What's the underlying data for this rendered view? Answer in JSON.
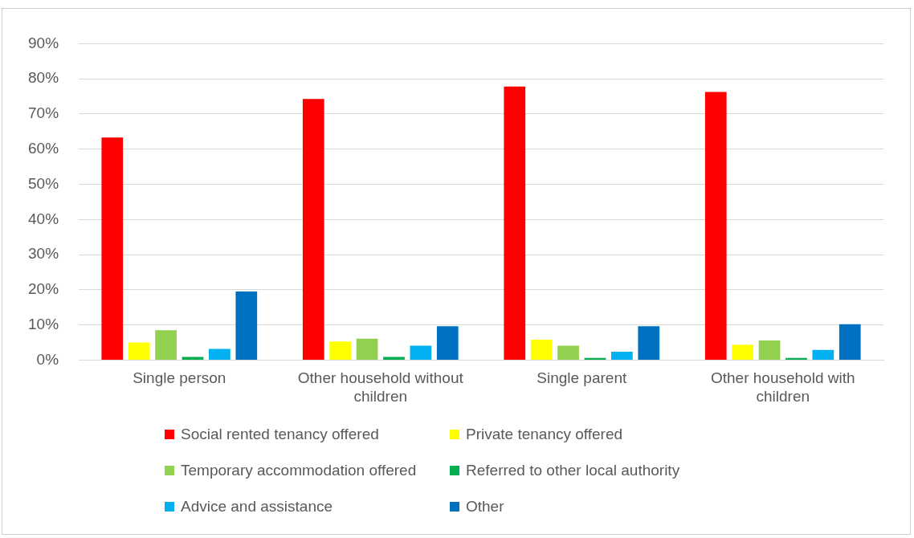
{
  "chart_data": {
    "type": "bar",
    "categories": [
      "Single person",
      "Other household without children",
      "Single parent",
      "Other household with children"
    ],
    "series": [
      {
        "name": "Social rented tenancy offered",
        "color": "#ff0000",
        "values": [
          63.3,
          74.3,
          77.8,
          76.3
        ]
      },
      {
        "name": "Private tenancy offered",
        "color": "#ffff00",
        "values": [
          5.0,
          5.3,
          5.8,
          4.4
        ]
      },
      {
        "name": "Temporary accommodation offered",
        "color": "#92d050",
        "values": [
          8.5,
          6.1,
          4.1,
          5.6
        ]
      },
      {
        "name": "Referred to other local authority",
        "color": "#00b050",
        "values": [
          0.9,
          0.9,
          0.6,
          0.6
        ]
      },
      {
        "name": "Advice and assistance",
        "color": "#00b0f0",
        "values": [
          3.2,
          4.1,
          2.4,
          2.9
        ]
      },
      {
        "name": "Other",
        "color": "#0070c0",
        "values": [
          19.5,
          9.6,
          9.6,
          10.2
        ]
      }
    ],
    "ylim": [
      0,
      90
    ],
    "yticks": [
      {
        "value": 0,
        "label": "0%"
      },
      {
        "value": 10,
        "label": "10%"
      },
      {
        "value": 20,
        "label": "20%"
      },
      {
        "value": 30,
        "label": "30%"
      },
      {
        "value": 40,
        "label": "40%"
      },
      {
        "value": 50,
        "label": "50%"
      },
      {
        "value": 60,
        "label": "60%"
      },
      {
        "value": 70,
        "label": "70%"
      },
      {
        "value": 80,
        "label": "80%"
      },
      {
        "value": 90,
        "label": "90%"
      }
    ],
    "grid": "y",
    "legend": "bottom"
  }
}
